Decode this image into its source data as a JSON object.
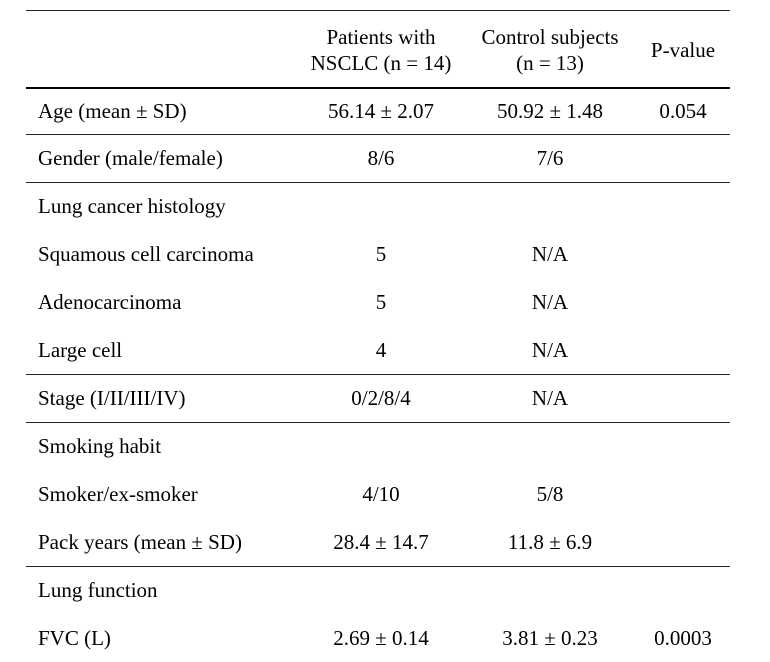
{
  "table": {
    "headers": {
      "label": "",
      "patients_line1": "Patients with",
      "patients_line2": "NSCLC (n = 14)",
      "controls_line1": "Control subjects",
      "controls_line2": "(n = 13)",
      "pvalue": "P-value"
    },
    "rows": [
      {
        "label": "Age (mean ± SD)",
        "patients": "56.14 ± 2.07",
        "controls": "50.92 ± 1.48",
        "p": "0.054"
      },
      {
        "label": "Gender (male/female)",
        "patients": "8/6",
        "controls": "7/6",
        "p": ""
      },
      {
        "label": "Lung cancer histology",
        "patients": "",
        "controls": "",
        "p": ""
      },
      {
        "label": "Squamous cell carcinoma",
        "patients": "5",
        "controls": "N/A",
        "p": ""
      },
      {
        "label": "Adenocarcinoma",
        "patients": "5",
        "controls": "N/A",
        "p": ""
      },
      {
        "label": "Large cell",
        "patients": "4",
        "controls": "N/A",
        "p": ""
      },
      {
        "label": "Stage (I/II/III/IV)",
        "patients": "0/2/8/4",
        "controls": "N/A",
        "p": ""
      },
      {
        "label": "Smoking habit",
        "patients": "",
        "controls": "",
        "p": ""
      },
      {
        "label": "Smoker/ex-smoker",
        "patients": "4/10",
        "controls": "5/8",
        "p": ""
      },
      {
        "label": "Pack years (mean ± SD)",
        "patients": "28.4 ± 14.7",
        "controls": "11.8 ± 6.9",
        "p": ""
      },
      {
        "label": "Lung function",
        "patients": "",
        "controls": "",
        "p": ""
      },
      {
        "label": "FVC (L)",
        "patients": "2.69 ± 0.14",
        "controls": "3.81 ± 0.23",
        "p": "0.0003"
      }
    ]
  }
}
